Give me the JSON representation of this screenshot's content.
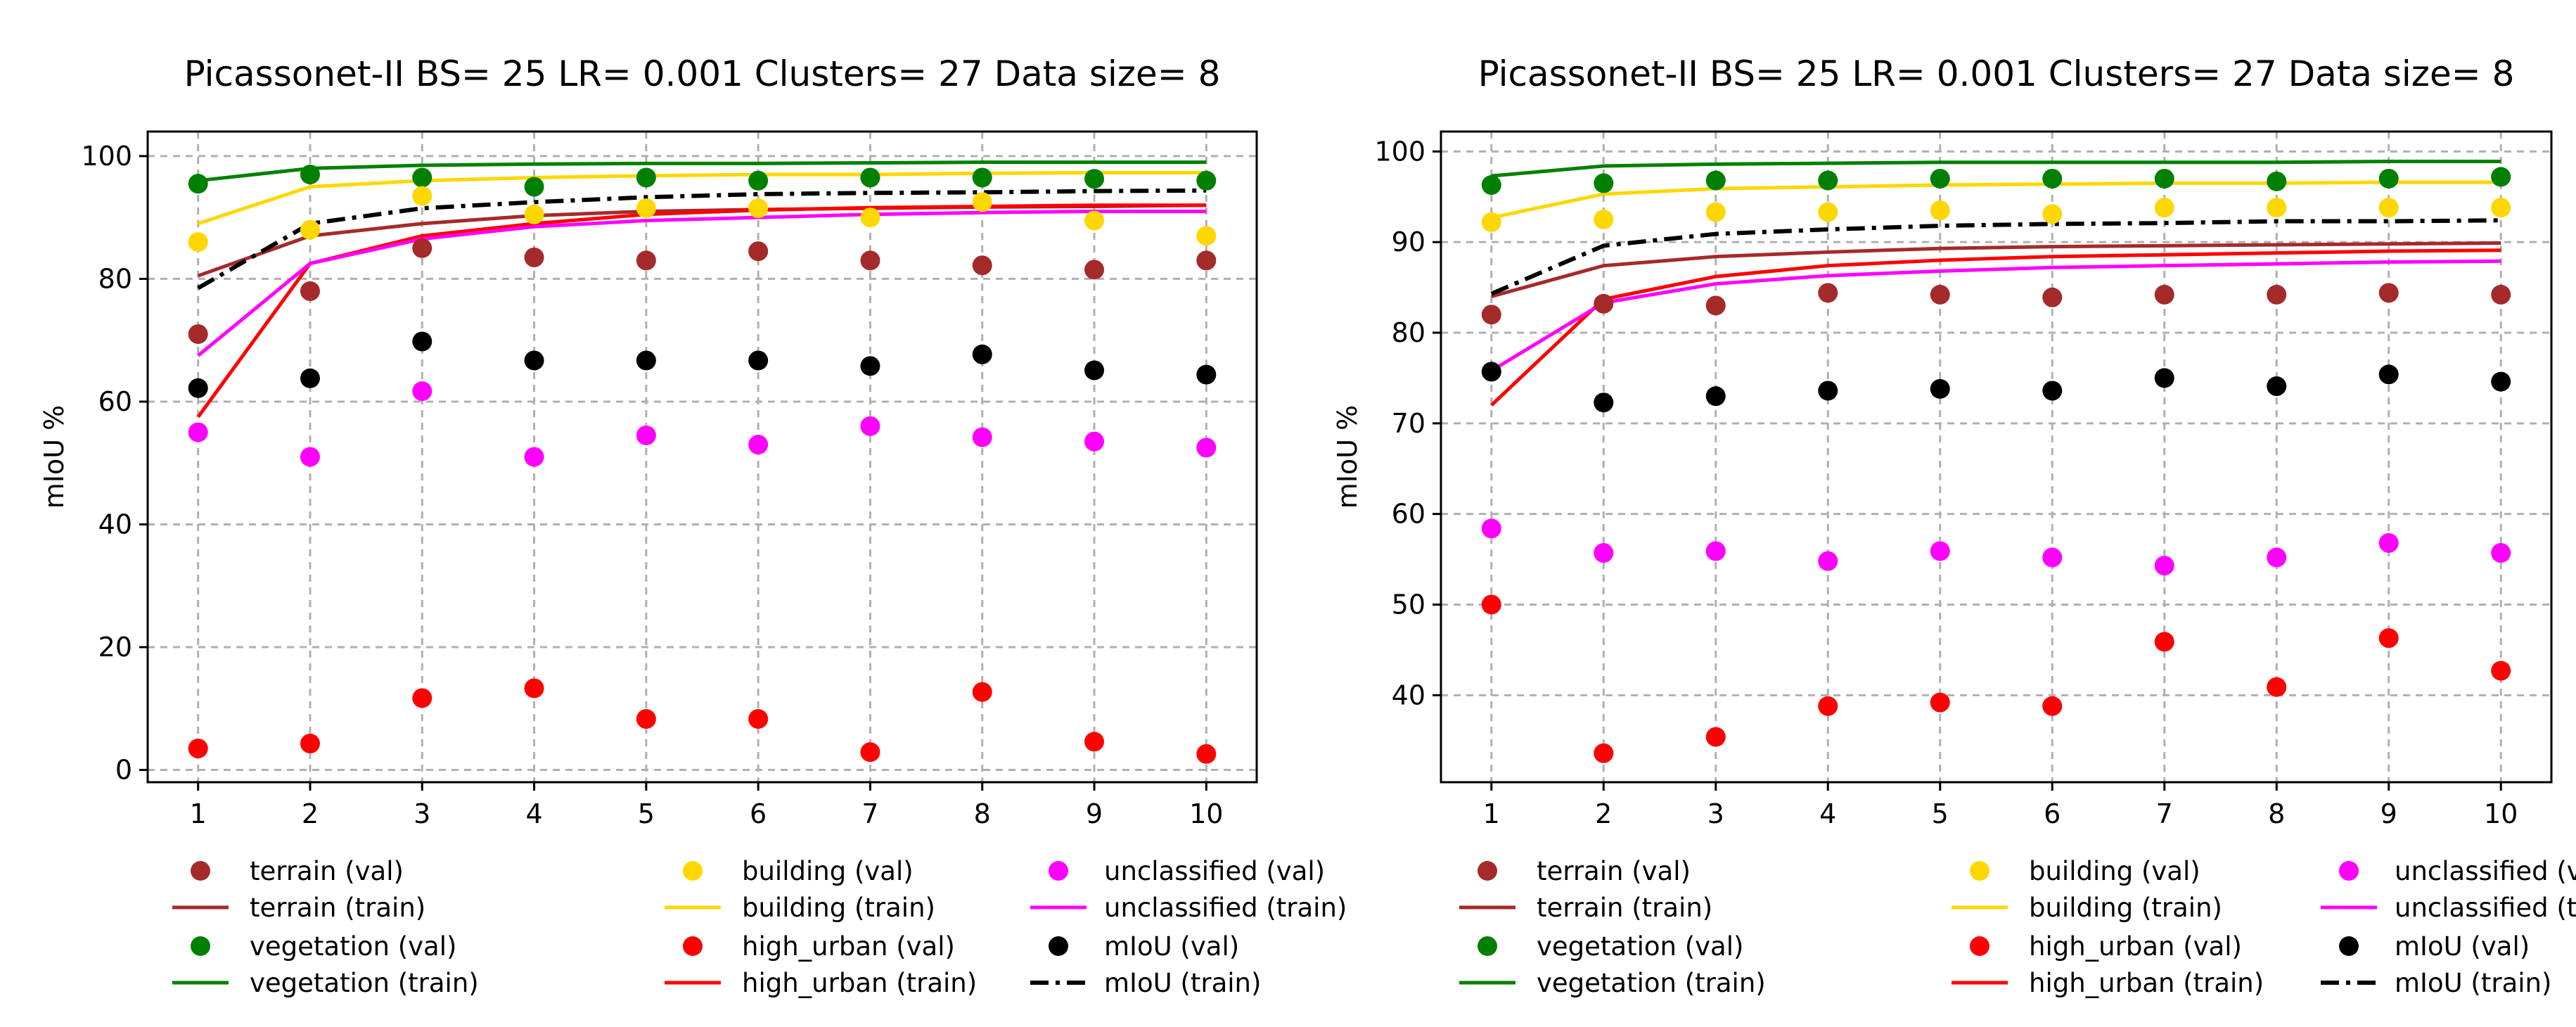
{
  "chart_data": [
    {
      "type": "line+scatter",
      "title": "Picassonet-II BS= 25 LR= 0.001 Clusters= 27 Data size= 8",
      "xlabel": "",
      "ylabel": "mIoU %",
      "x": [
        1,
        2,
        3,
        4,
        5,
        6,
        7,
        8,
        9,
        10
      ],
      "xticks": [
        "1",
        "2",
        "3",
        "4",
        "5",
        "6",
        "7",
        "8",
        "9",
        "10"
      ],
      "yticks": [
        0,
        20,
        40,
        60,
        80,
        100
      ],
      "ylim": [
        -2,
        104
      ],
      "xlim": [
        0.55,
        10.45
      ],
      "grid": true,
      "legend_placement": "below",
      "series": [
        {
          "name": "terrain (val)",
          "kind": "scatter",
          "color": "#a52a2a",
          "values": [
            71,
            78,
            85,
            83.5,
            83,
            84.5,
            83,
            82.2,
            81.5,
            83
          ]
        },
        {
          "name": "terrain (train)",
          "kind": "line",
          "color": "#a52a2a",
          "values": [
            80.5,
            87,
            89,
            90.3,
            91,
            91.3,
            91.5,
            91.7,
            91.8,
            92
          ]
        },
        {
          "name": "vegetation (val)",
          "kind": "scatter",
          "color": "#008000",
          "values": [
            95.5,
            97,
            96.5,
            95,
            96.5,
            96,
            96.5,
            96.5,
            96.3,
            96
          ]
        },
        {
          "name": "vegetation (train)",
          "kind": "line",
          "color": "#008000",
          "values": [
            96,
            98,
            98.5,
            98.7,
            98.8,
            98.8,
            98.9,
            99,
            99,
            99
          ]
        },
        {
          "name": "building (val)",
          "kind": "scatter",
          "color": "#ffd700",
          "values": [
            86,
            88,
            93.5,
            90.5,
            91.5,
            91.5,
            90,
            92.5,
            89.5,
            87
          ]
        },
        {
          "name": "building (train)",
          "kind": "line",
          "color": "#ffd700",
          "values": [
            89,
            95,
            96,
            96.5,
            96.8,
            97,
            97,
            97.2,
            97.3,
            97.3
          ]
        },
        {
          "name": "high_urban (val)",
          "kind": "scatter",
          "color": "#ff0000",
          "values": [
            3.5,
            4.3,
            11.7,
            13.3,
            8.3,
            8.3,
            2.9,
            12.7,
            4.6,
            2.6
          ]
        },
        {
          "name": "high_urban (train)",
          "kind": "line",
          "color": "#ff0000",
          "values": [
            57.5,
            82.5,
            87,
            89,
            90.5,
            91.2,
            91.6,
            91.8,
            92,
            92
          ]
        },
        {
          "name": "unclassified (val)",
          "kind": "scatter",
          "color": "#ff00ff",
          "values": [
            55,
            51,
            61.7,
            51,
            54.5,
            53,
            56,
            54.2,
            53.5,
            52.5
          ]
        },
        {
          "name": "unclassified (train)",
          "kind": "line",
          "color": "#ff00ff",
          "values": [
            67.5,
            82.5,
            86.5,
            88.5,
            89.5,
            90,
            90.5,
            90.8,
            91,
            91
          ]
        },
        {
          "name": "mIoU (val)",
          "kind": "scatter",
          "color": "#000000",
          "values": [
            62.2,
            63.8,
            69.8,
            66.7,
            66.7,
            66.7,
            65.8,
            67.7,
            65.1,
            64.4
          ]
        },
        {
          "name": "mIoU (train)",
          "kind": "dashdot",
          "color": "#000000",
          "values": [
            78.5,
            89,
            91.5,
            92.5,
            93.3,
            93.8,
            94,
            94.1,
            94.3,
            94.4
          ]
        }
      ]
    },
    {
      "type": "line+scatter",
      "title": "Picassonet-II BS= 25 LR= 0.001 Clusters= 27 Data size= 8",
      "xlabel": "",
      "ylabel": "mIoU %",
      "x": [
        1,
        2,
        3,
        4,
        5,
        6,
        7,
        8,
        9,
        10
      ],
      "xticks": [
        "1",
        "2",
        "3",
        "4",
        "5",
        "6",
        "7",
        "8",
        "9",
        "10"
      ],
      "yticks": [
        40,
        50,
        60,
        70,
        80,
        90,
        100
      ],
      "ylim": [
        30.4,
        102.2
      ],
      "xlim": [
        0.55,
        10.45
      ],
      "grid": true,
      "legend_placement": "below",
      "series": [
        {
          "name": "terrain (val)",
          "kind": "scatter",
          "color": "#a52a2a",
          "values": [
            82,
            83.2,
            83,
            84.4,
            84.2,
            83.9,
            84.2,
            84.2,
            84.4,
            84.2
          ]
        },
        {
          "name": "terrain (train)",
          "kind": "line",
          "color": "#a52a2a",
          "values": [
            84,
            87.4,
            88.4,
            88.9,
            89.3,
            89.5,
            89.6,
            89.7,
            89.8,
            89.9
          ]
        },
        {
          "name": "vegetation (val)",
          "kind": "scatter",
          "color": "#008000",
          "values": [
            96.3,
            96.5,
            96.8,
            96.8,
            97,
            97,
            97,
            96.7,
            97,
            97.2
          ]
        },
        {
          "name": "vegetation (train)",
          "kind": "line",
          "color": "#008000",
          "values": [
            97.3,
            98.4,
            98.6,
            98.7,
            98.8,
            98.8,
            98.8,
            98.8,
            98.9,
            98.9
          ]
        },
        {
          "name": "building (val)",
          "kind": "scatter",
          "color": "#ffd700",
          "values": [
            92.2,
            92.5,
            93.3,
            93.3,
            93.5,
            93.1,
            93.8,
            93.8,
            93.8,
            93.8
          ]
        },
        {
          "name": "building (train)",
          "kind": "line",
          "color": "#ffd700",
          "values": [
            92.7,
            95.3,
            95.9,
            96.1,
            96.3,
            96.4,
            96.5,
            96.5,
            96.6,
            96.6
          ]
        },
        {
          "name": "high_urban (val)",
          "kind": "scatter",
          "color": "#ff0000",
          "values": [
            50,
            33.6,
            35.4,
            38.8,
            39.2,
            38.8,
            45.9,
            40.9,
            46.3,
            42.7
          ]
        },
        {
          "name": "high_urban (train)",
          "kind": "line",
          "color": "#ff0000",
          "values": [
            72,
            83.7,
            86.2,
            87.4,
            88,
            88.4,
            88.6,
            88.8,
            89,
            89.1
          ]
        },
        {
          "name": "unclassified (val)",
          "kind": "scatter",
          "color": "#ff00ff",
          "values": [
            58.4,
            55.7,
            55.9,
            54.8,
            55.9,
            55.2,
            54.3,
            55.2,
            56.8,
            55.7
          ]
        },
        {
          "name": "unclassified (train)",
          "kind": "line",
          "color": "#ff00ff",
          "values": [
            75.8,
            83.3,
            85.4,
            86.3,
            86.8,
            87.2,
            87.4,
            87.6,
            87.8,
            87.9
          ]
        },
        {
          "name": "mIoU (val)",
          "kind": "scatter",
          "color": "#000000",
          "values": [
            75.7,
            72.3,
            73,
            73.6,
            73.8,
            73.6,
            75,
            74.1,
            75.4,
            74.6
          ]
        },
        {
          "name": "mIoU (train)",
          "kind": "dashdot",
          "color": "#000000",
          "values": [
            84.3,
            89.6,
            90.9,
            91.4,
            91.8,
            92,
            92.1,
            92.3,
            92.3,
            92.4
          ]
        }
      ]
    }
  ]
}
